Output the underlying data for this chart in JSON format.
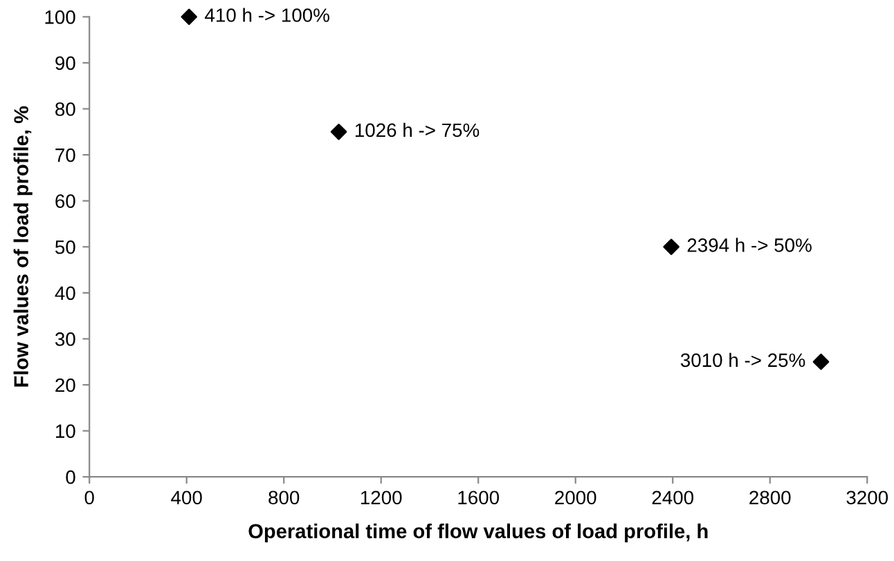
{
  "chart_data": {
    "type": "scatter",
    "xlabel": "Operational time of flow values of load profile, h",
    "ylabel": "Flow values of load profile, %",
    "x": [
      410,
      1026,
      2394,
      3010
    ],
    "series": [
      {
        "color": "#000000",
        "values": [
          100,
          75,
          50,
          25
        ]
      }
    ],
    "marker": "diamond",
    "grid": false,
    "legend": false,
    "xlim": [
      0,
      3200
    ],
    "xticks": [
      0,
      400,
      800,
      1200,
      1600,
      2000,
      2400,
      2800,
      3200
    ],
    "ylim": [
      0,
      100
    ],
    "yticks": [
      0,
      10,
      20,
      30,
      40,
      50,
      60,
      70,
      80,
      90,
      100
    ],
    "annotations": [
      {
        "text": "410 h -> 100%",
        "x": 410,
        "y": 100
      },
      {
        "text": "1026 h -> 75%",
        "x": 1026,
        "y": 75
      },
      {
        "text": "2394 h -> 50%",
        "x": 2394,
        "y": 50
      },
      {
        "text": "3010 h -> 25%",
        "x": 3010,
        "y": 25
      }
    ]
  }
}
